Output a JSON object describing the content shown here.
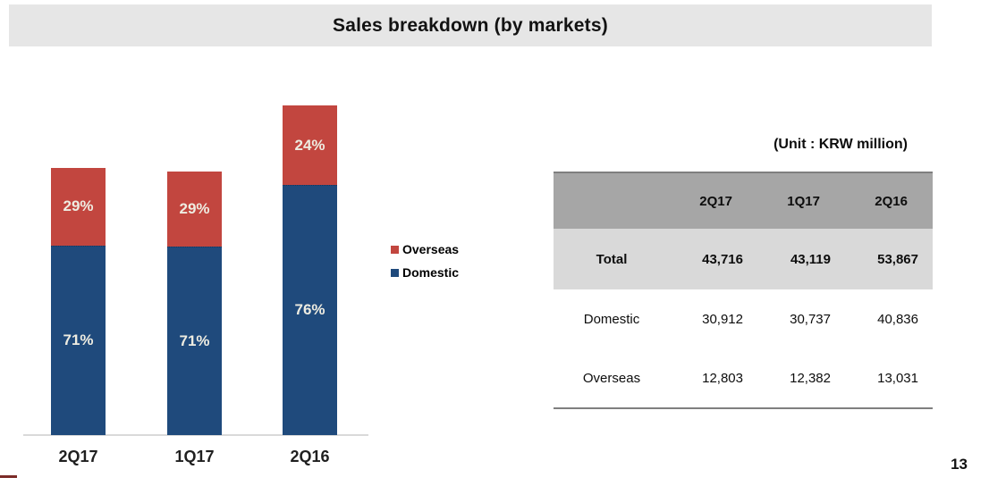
{
  "slide": {
    "title": "Sales breakdown (by markets)",
    "page_number": "13"
  },
  "chart_data": {
    "type": "bar",
    "stacked": true,
    "title": "Sales breakdown (by markets)",
    "categories": [
      "2Q17",
      "1Q17",
      "2Q16"
    ],
    "totals": [
      43716,
      43119,
      53867
    ],
    "series": [
      {
        "name": "Domestic",
        "color": "#1F4A7C",
        "values": [
          30912,
          30737,
          40836
        ],
        "percent_labels": [
          "71%",
          "71%",
          "76%"
        ]
      },
      {
        "name": "Overseas",
        "color": "#C2463F",
        "values": [
          12803,
          12382,
          13031
        ],
        "percent_labels": [
          "29%",
          "29%",
          "24%"
        ]
      }
    ],
    "legend": [
      "Overseas",
      "Domestic"
    ],
    "legend_position": "right",
    "grid": false,
    "value_label_color": "#EEECE1",
    "axis_color": "#D9D9D9"
  },
  "table": {
    "unit_label": "(Unit : KRW million)",
    "columns": [
      "",
      "2Q17",
      "1Q17",
      "2Q16"
    ],
    "rows": [
      {
        "label": "Total",
        "values": [
          "43,716",
          "43,119",
          "53,867"
        ],
        "emphasis": true
      },
      {
        "label": "Domestic",
        "values": [
          "30,912",
          "30,737",
          "40,836"
        ],
        "emphasis": false
      },
      {
        "label": "Overseas",
        "values": [
          "12,803",
          "12,382",
          "13,031"
        ],
        "emphasis": false
      }
    ]
  }
}
